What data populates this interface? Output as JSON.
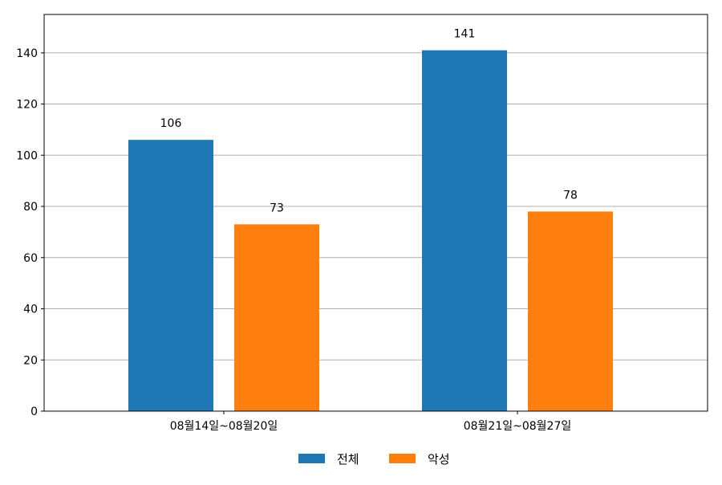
{
  "chart_data": {
    "type": "bar",
    "title": "",
    "xlabel": "",
    "ylabel": "",
    "categories": [
      "08월14일~08월20일",
      "08월21일~08월27일"
    ],
    "series": [
      {
        "name": "전체",
        "values": [
          106,
          141
        ],
        "color": "#1f77b4"
      },
      {
        "name": "악성",
        "values": [
          73,
          78
        ],
        "color": "#ff7f0e"
      }
    ],
    "ylim": [
      0,
      155
    ],
    "yticks": [
      0,
      20,
      40,
      60,
      80,
      100,
      120,
      140
    ],
    "grid": "horizontal",
    "legend_position": "bottom-center",
    "data_labels": true
  }
}
